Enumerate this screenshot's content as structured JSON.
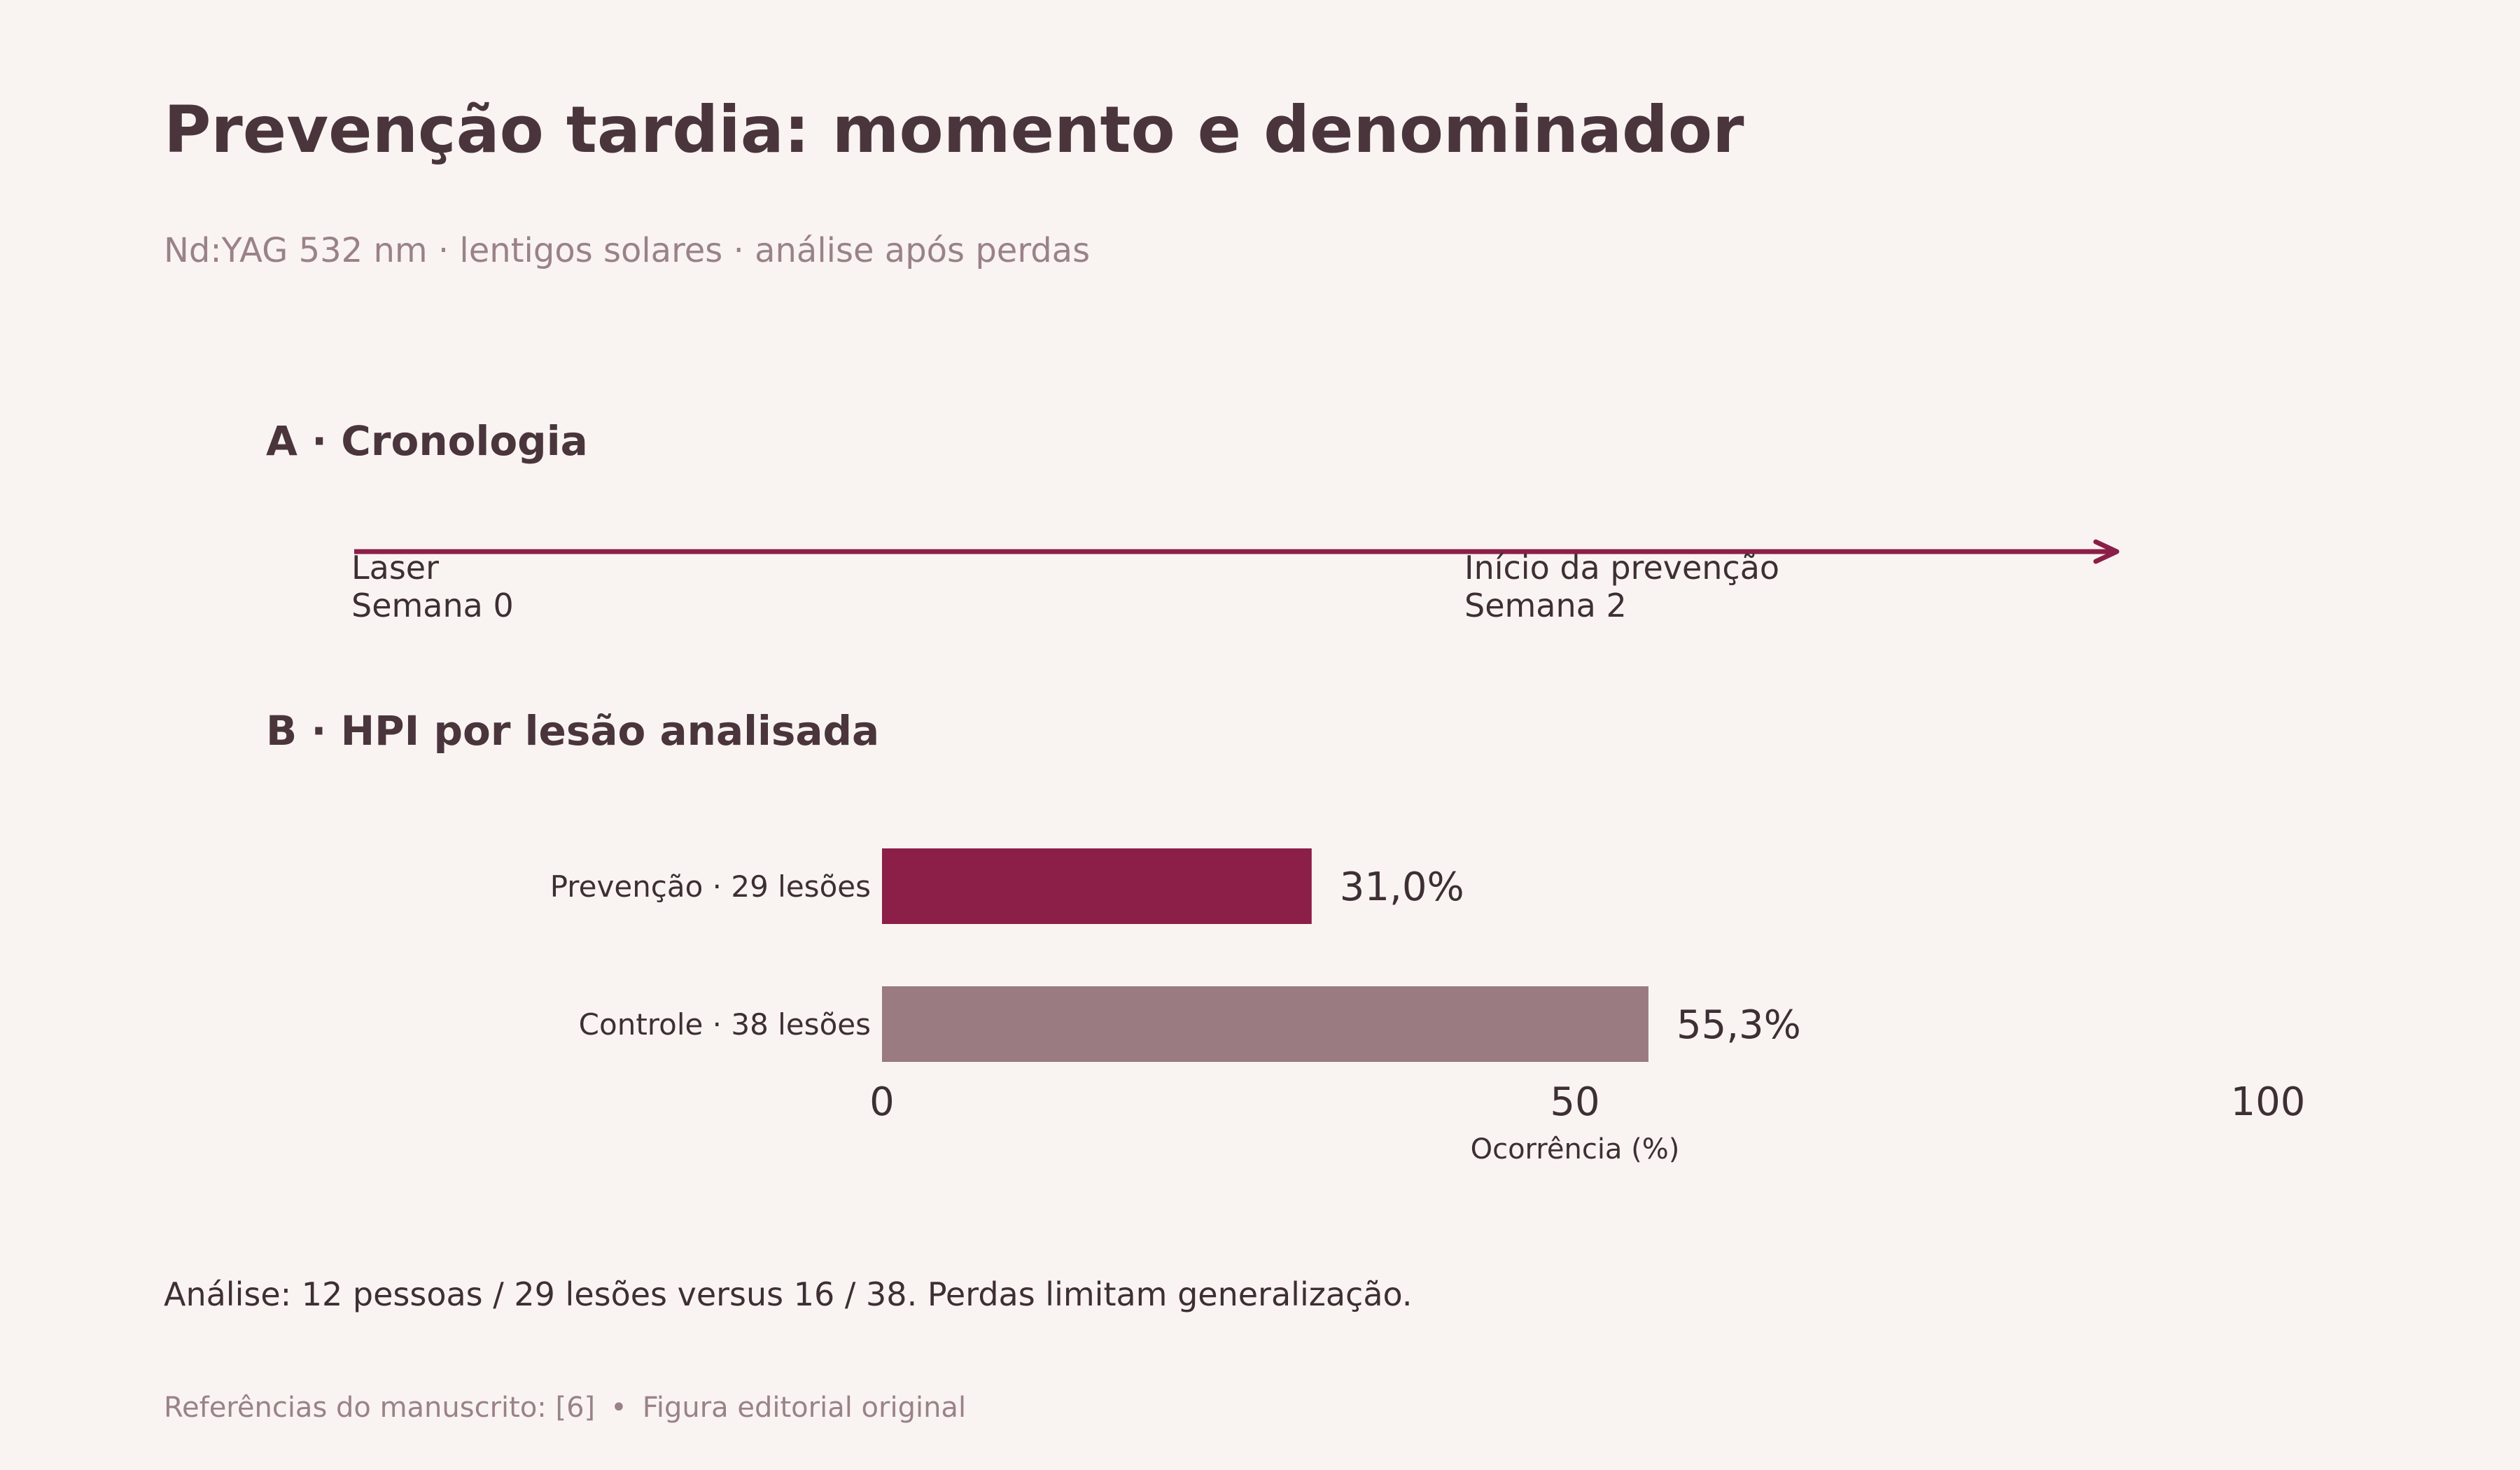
{
  "title": "Prevenção tardia: momento e denominador",
  "subtitle": "Nd:YAG 532 nm · lentigos solares · análise após perdas",
  "colors": {
    "background": "#f9f4f1",
    "text": "#4a353d",
    "muted": "#9a8289",
    "accent": "#8b1f47",
    "control_bar": "#9a7b81"
  },
  "panel_a": {
    "title": "A · Cronologia",
    "events": [
      {
        "label": "Laser",
        "time": "Semana 0",
        "week": 0
      },
      {
        "label": "Início da prevenção",
        "time": "Semana 2",
        "week": 2
      }
    ]
  },
  "panel_b": {
    "title": "B · HPI por lesão analisada"
  },
  "chart_data": {
    "type": "bar",
    "orientation": "horizontal",
    "title": "B · HPI por lesão analisada",
    "categories": [
      "Prevenção · 29 lesões",
      "Controle · 38 lesões"
    ],
    "values": [
      31.0,
      55.3
    ],
    "value_labels": [
      "31,0%",
      "55,3%"
    ],
    "colors": [
      "#8b1f47",
      "#9a7b81"
    ],
    "xlabel": "Ocorrência (%)",
    "ylabel": "",
    "xlim": [
      0,
      100
    ],
    "xticks": [
      0,
      50,
      100
    ],
    "grid": false,
    "legend": "none"
  },
  "note": "Análise: 12 pessoas / 29 lesões versus 16 / 38. Perdas limitam generalização.",
  "footer": {
    "references": "Referências do manuscrito: [6]",
    "separator": "•",
    "origin": "Figura editorial original"
  }
}
